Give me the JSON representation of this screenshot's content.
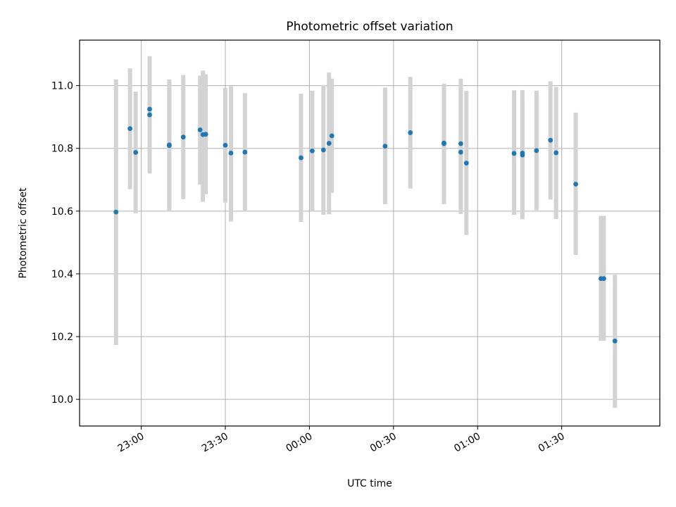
{
  "chart_data": {
    "type": "scatter",
    "title": "Photometric offset variation",
    "xlabel": "UTC time",
    "ylabel": "Photometric offset",
    "grid": true,
    "x_ticks": [
      "23:00",
      "23:30",
      "00:00",
      "00:30",
      "01:00",
      "01:30"
    ],
    "y_ticks": [
      "10.0",
      "10.2",
      "10.4",
      "10.6",
      "10.8",
      "11.0"
    ],
    "ylim": [
      9.915,
      11.145
    ],
    "xlim": [
      "22:38",
      "02:05"
    ],
    "colors": {
      "point": "#1f77b4",
      "errorbar": "#d3d3d3",
      "grid": "#b0b0b0"
    },
    "points": [
      {
        "t": "22:51",
        "y": 10.597,
        "lo": 10.173,
        "hi": 11.02
      },
      {
        "t": "22:56",
        "y": 10.863,
        "lo": 10.67,
        "hi": 11.055
      },
      {
        "t": "22:58",
        "y": 10.787,
        "lo": 10.593,
        "hi": 10.981
      },
      {
        "t": "23:03",
        "y": 10.925,
        "lo": 10.764,
        "hi": 11.086
      },
      {
        "t": "23:03",
        "y": 10.907,
        "lo": 10.72,
        "hi": 11.094
      },
      {
        "t": "23:10",
        "y": 10.811,
        "lo": 10.602,
        "hi": 11.02
      },
      {
        "t": "23:10",
        "y": 10.809,
        "lo": 10.606,
        "hi": 11.012
      },
      {
        "t": "23:15",
        "y": 10.836,
        "lo": 10.638,
        "hi": 11.034
      },
      {
        "t": "23:21",
        "y": 10.859,
        "lo": 10.685,
        "hi": 11.032
      },
      {
        "t": "23:22",
        "y": 10.844,
        "lo": 10.63,
        "hi": 11.048
      },
      {
        "t": "23:23",
        "y": 10.845,
        "lo": 10.654,
        "hi": 11.036
      },
      {
        "t": "23:30",
        "y": 10.81,
        "lo": 10.627,
        "hi": 10.993
      },
      {
        "t": "23:32",
        "y": 10.785,
        "lo": 10.567,
        "hi": 10.998
      },
      {
        "t": "23:37",
        "y": 10.788,
        "lo": 10.6,
        "hi": 10.976
      },
      {
        "t": "23:57",
        "y": 10.77,
        "lo": 10.566,
        "hi": 10.974
      },
      {
        "t": "00:01",
        "y": 10.792,
        "lo": 10.6,
        "hi": 10.984
      },
      {
        "t": "00:05",
        "y": 10.795,
        "lo": 10.588,
        "hi": 11.002
      },
      {
        "t": "00:07",
        "y": 10.816,
        "lo": 10.59,
        "hi": 11.042
      },
      {
        "t": "00:08",
        "y": 10.84,
        "lo": 10.658,
        "hi": 11.022
      },
      {
        "t": "00:27",
        "y": 10.807,
        "lo": 10.622,
        "hi": 10.994
      },
      {
        "t": "00:36",
        "y": 10.85,
        "lo": 10.672,
        "hi": 11.028
      },
      {
        "t": "00:48",
        "y": 10.817,
        "lo": 10.636,
        "hi": 10.998
      },
      {
        "t": "00:48",
        "y": 10.815,
        "lo": 10.622,
        "hi": 11.006
      },
      {
        "t": "00:54",
        "y": 10.788,
        "lo": 10.591,
        "hi": 10.989
      },
      {
        "t": "00:54",
        "y": 10.815,
        "lo": 10.605,
        "hi": 11.022
      },
      {
        "t": "00:56",
        "y": 10.753,
        "lo": 10.524,
        "hi": 10.983
      },
      {
        "t": "01:13",
        "y": 10.784,
        "lo": 10.588,
        "hi": 10.985
      },
      {
        "t": "01:16",
        "y": 10.785,
        "lo": 10.607,
        "hi": 10.961
      },
      {
        "t": "01:16",
        "y": 10.779,
        "lo": 10.574,
        "hi": 10.986
      },
      {
        "t": "01:21",
        "y": 10.793,
        "lo": 10.603,
        "hi": 10.984
      },
      {
        "t": "01:26",
        "y": 10.826,
        "lo": 10.637,
        "hi": 11.014
      },
      {
        "t": "01:28",
        "y": 10.786,
        "lo": 10.575,
        "hi": 10.996
      },
      {
        "t": "01:35",
        "y": 10.686,
        "lo": 10.46,
        "hi": 10.914
      },
      {
        "t": "01:44",
        "y": 10.385,
        "lo": 10.187,
        "hi": 10.585
      },
      {
        "t": "01:45",
        "y": 10.385,
        "lo": 10.187,
        "hi": 10.585
      },
      {
        "t": "01:49",
        "y": 10.186,
        "lo": 9.973,
        "hi": 10.397
      }
    ]
  }
}
